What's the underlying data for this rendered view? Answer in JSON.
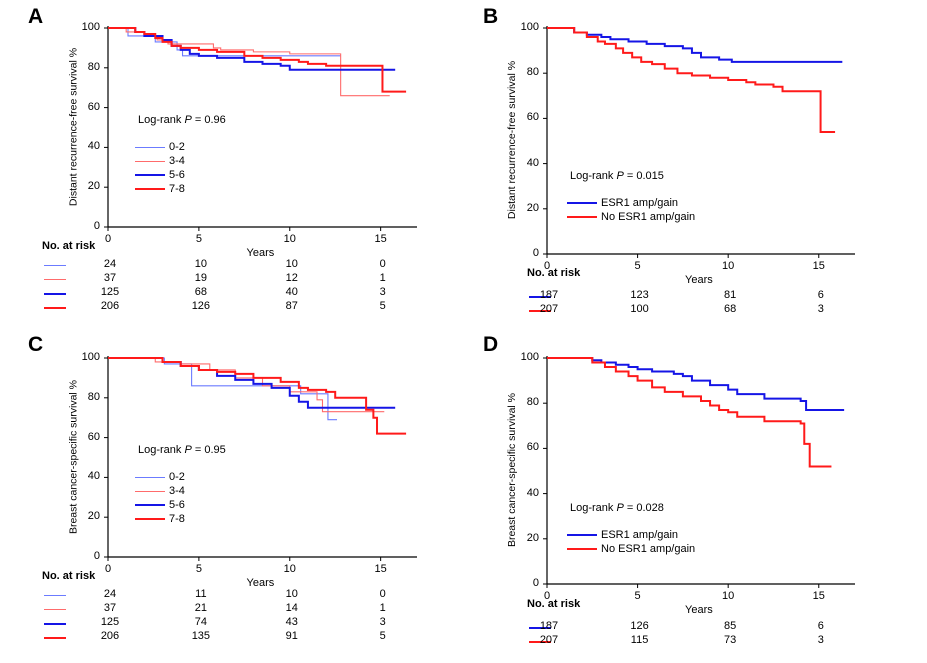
{
  "chart_data": [
    {
      "panel": "A",
      "type": "line",
      "ylabel": "Distant recurrence-free survival %",
      "xlabel": "Years",
      "xlim": [
        0,
        17
      ],
      "ylim": [
        0,
        100
      ],
      "xticks": [
        "0",
        "5",
        "10",
        "15"
      ],
      "yticks": [
        "0",
        "20",
        "40",
        "60",
        "80",
        "100"
      ],
      "logrank_prefix": "Log-rank ",
      "logrank_p": "P",
      "logrank_value": " = 0.96",
      "risk_title": "No. at risk",
      "series": [
        {
          "name": "0-2",
          "color": "#6b7bff",
          "width": 1.1,
          "points": [
            [
              0,
              100
            ],
            [
              1,
              100
            ],
            [
              1.1,
              96
            ],
            [
              2.5,
              96
            ],
            [
              2.6,
              93
            ],
            [
              3,
              93
            ],
            [
              3.8,
              89
            ],
            [
              4.1,
              86
            ],
            [
              8,
              86
            ],
            [
              8.2,
              86
            ],
            [
              12.8,
              86
            ]
          ],
          "risk": [
            "24",
            "10",
            "10",
            "0"
          ]
        },
        {
          "name": "3-4",
          "color": "#ff6b6b",
          "width": 1.1,
          "points": [
            [
              0,
              100
            ],
            [
              0.8,
              100
            ],
            [
              1,
              98
            ],
            [
              2,
              96
            ],
            [
              2.7,
              94
            ],
            [
              3.3,
              92
            ],
            [
              4.5,
              92
            ],
            [
              5.8,
              90
            ],
            [
              6.2,
              89
            ],
            [
              8,
              88
            ],
            [
              10,
              87
            ],
            [
              12.7,
              87
            ],
            [
              12.8,
              66
            ],
            [
              15.5,
              66
            ]
          ],
          "risk": [
            "37",
            "19",
            "12",
            "1"
          ]
        },
        {
          "name": "5-6",
          "color": "#1515e6",
          "width": 2.0,
          "points": [
            [
              0,
              100
            ],
            [
              1,
              100
            ],
            [
              1.5,
              98
            ],
            [
              2,
              96
            ],
            [
              3,
              94
            ],
            [
              3.5,
              91
            ],
            [
              4,
              89
            ],
            [
              4.5,
              87
            ],
            [
              5,
              86
            ],
            [
              6,
              85
            ],
            [
              7.5,
              83
            ],
            [
              8.5,
              82
            ],
            [
              9.5,
              81
            ],
            [
              10,
              79
            ],
            [
              14,
              79
            ],
            [
              14.3,
              79
            ],
            [
              15.8,
              79
            ]
          ],
          "risk": [
            "125",
            "68",
            "40",
            "3"
          ]
        },
        {
          "name": "7-8",
          "color": "#ff1a1a",
          "width": 2.0,
          "points": [
            [
              0,
              100
            ],
            [
              0.8,
              100
            ],
            [
              1.5,
              98
            ],
            [
              2,
              97
            ],
            [
              2.6,
              95
            ],
            [
              3,
              93
            ],
            [
              3.5,
              91
            ],
            [
              4,
              90
            ],
            [
              5,
              89
            ],
            [
              6,
              88
            ],
            [
              7.5,
              86
            ],
            [
              8.5,
              85
            ],
            [
              9.5,
              84
            ],
            [
              10.5,
              83
            ],
            [
              11,
              82
            ],
            [
              12,
              81
            ],
            [
              14,
              81
            ],
            [
              15,
              81
            ],
            [
              15.1,
              68
            ],
            [
              16.4,
              68
            ]
          ],
          "risk": [
            "206",
            "126",
            "87",
            "5"
          ]
        }
      ]
    },
    {
      "panel": "B",
      "type": "line",
      "ylabel": "Distant recurrence-free survival %",
      "xlabel": "Years",
      "xlim": [
        0,
        17
      ],
      "ylim": [
        0,
        100
      ],
      "xticks": [
        "0",
        "5",
        "10",
        "15"
      ],
      "yticks": [
        "0",
        "20",
        "40",
        "60",
        "80",
        "100"
      ],
      "logrank_prefix": "Log-rank ",
      "logrank_p": "P",
      "logrank_value": " = 0.015",
      "risk_title": "No. at risk",
      "series": [
        {
          "name": "ESR1 amp/gain",
          "color": "#1515e6",
          "width": 2.0,
          "points": [
            [
              0,
              100
            ],
            [
              1,
              100
            ],
            [
              1.5,
              98
            ],
            [
              2.2,
              97
            ],
            [
              3,
              96
            ],
            [
              3.5,
              95
            ],
            [
              4.5,
              94
            ],
            [
              5.5,
              93
            ],
            [
              6.5,
              92
            ],
            [
              7.5,
              91
            ],
            [
              8,
              89
            ],
            [
              8.5,
              87
            ],
            [
              9.5,
              86
            ],
            [
              10.2,
              85
            ],
            [
              11,
              85
            ],
            [
              14,
              85
            ],
            [
              16.3,
              85
            ]
          ],
          "risk": [
            "187",
            "123",
            "81",
            "6"
          ]
        },
        {
          "name": "No ESR1 amp/gain",
          "color": "#ff1a1a",
          "width": 2.0,
          "points": [
            [
              0,
              100
            ],
            [
              1,
              100
            ],
            [
              1.5,
              98
            ],
            [
              2.2,
              96
            ],
            [
              2.8,
              94
            ],
            [
              3.2,
              93
            ],
            [
              3.8,
              91
            ],
            [
              4.2,
              89
            ],
            [
              4.7,
              87
            ],
            [
              5.2,
              85
            ],
            [
              5.8,
              84
            ],
            [
              6.5,
              82
            ],
            [
              7.2,
              80
            ],
            [
              8,
              79
            ],
            [
              9,
              78
            ],
            [
              10,
              77
            ],
            [
              11,
              76
            ],
            [
              11.5,
              75
            ],
            [
              12.5,
              74
            ],
            [
              13,
              72
            ],
            [
              14,
              72
            ],
            [
              15,
              72
            ],
            [
              15.1,
              54
            ],
            [
              15.9,
              54
            ]
          ],
          "risk": [
            "207",
            "100",
            "68",
            "3"
          ]
        }
      ]
    },
    {
      "panel": "C",
      "type": "line",
      "ylabel": "Breast cancer-specific survival %",
      "xlabel": "Years",
      "xlim": [
        0,
        17
      ],
      "ylim": [
        0,
        100
      ],
      "xticks": [
        "0",
        "5",
        "10",
        "15"
      ],
      "yticks": [
        "0",
        "20",
        "40",
        "60",
        "80",
        "100"
      ],
      "logrank_prefix": "Log-rank ",
      "logrank_p": "P",
      "logrank_value": " = 0.95",
      "risk_title": "No. at risk",
      "series": [
        {
          "name": "0-2",
          "color": "#6b7bff",
          "width": 1.1,
          "points": [
            [
              0,
              100
            ],
            [
              3,
              100
            ],
            [
              3.1,
              97
            ],
            [
              4.5,
              97
            ],
            [
              4.6,
              86
            ],
            [
              10.5,
              86
            ],
            [
              10.6,
              82
            ],
            [
              11,
              82
            ],
            [
              12,
              82
            ],
            [
              12.1,
              69
            ],
            [
              12.6,
              69
            ]
          ],
          "risk": [
            "24",
            "11",
            "10",
            "0"
          ]
        },
        {
          "name": "3-4",
          "color": "#ff6b6b",
          "width": 1.1,
          "points": [
            [
              0,
              100
            ],
            [
              2.5,
              100
            ],
            [
              2.6,
              98
            ],
            [
              3.5,
              98
            ],
            [
              4,
              97
            ],
            [
              5.5,
              97
            ],
            [
              5.6,
              94
            ],
            [
              7,
              90
            ],
            [
              8.5,
              86
            ],
            [
              10,
              83
            ],
            [
              11.5,
              79
            ],
            [
              11.8,
              73
            ],
            [
              15.2,
              73
            ]
          ],
          "risk": [
            "37",
            "21",
            "14",
            "1"
          ]
        },
        {
          "name": "5-6",
          "color": "#1515e6",
          "width": 2.0,
          "points": [
            [
              0,
              100
            ],
            [
              2.5,
              100
            ],
            [
              3,
              98
            ],
            [
              4,
              96
            ],
            [
              5,
              94
            ],
            [
              6,
              91
            ],
            [
              7,
              89
            ],
            [
              8,
              87
            ],
            [
              9,
              85
            ],
            [
              10,
              81
            ],
            [
              10.5,
              78
            ],
            [
              11,
              75
            ],
            [
              13,
              75
            ],
            [
              14,
              75
            ],
            [
              15.8,
              75
            ]
          ],
          "risk": [
            "125",
            "74",
            "43",
            "3"
          ]
        },
        {
          "name": "7-8",
          "color": "#ff1a1a",
          "width": 2.0,
          "points": [
            [
              0,
              100
            ],
            [
              2.5,
              100
            ],
            [
              3,
              98
            ],
            [
              4,
              96
            ],
            [
              5,
              94
            ],
            [
              6,
              93
            ],
            [
              7,
              92
            ],
            [
              8,
              90
            ],
            [
              9.5,
              88
            ],
            [
              10.5,
              85
            ],
            [
              11,
              84
            ],
            [
              12,
              83
            ],
            [
              12.5,
              80
            ],
            [
              14,
              80
            ],
            [
              14.2,
              74
            ],
            [
              14.6,
              70
            ],
            [
              14.8,
              62
            ],
            [
              16.4,
              62
            ]
          ],
          "risk": [
            "206",
            "135",
            "91",
            "5"
          ]
        }
      ]
    },
    {
      "panel": "D",
      "type": "line",
      "ylabel": "Breast cancer-specific survival %",
      "xlabel": "Years",
      "xlim": [
        0,
        17
      ],
      "ylim": [
        0,
        100
      ],
      "xticks": [
        "0",
        "5",
        "10",
        "15"
      ],
      "yticks": [
        "0",
        "20",
        "40",
        "60",
        "80",
        "100"
      ],
      "logrank_prefix": "Log-rank ",
      "logrank_p": "P",
      "logrank_value": " = 0.028",
      "risk_title": "No. at risk",
      "series": [
        {
          "name": "ESR1 amp/gain",
          "color": "#1515e6",
          "width": 2.0,
          "points": [
            [
              0,
              100
            ],
            [
              2,
              100
            ],
            [
              2.5,
              99
            ],
            [
              3,
              98
            ],
            [
              3.8,
              97
            ],
            [
              4.5,
              96
            ],
            [
              5,
              95
            ],
            [
              5.8,
              94
            ],
            [
              7,
              93
            ],
            [
              7.5,
              92
            ],
            [
              8,
              90
            ],
            [
              9,
              88
            ],
            [
              10,
              86
            ],
            [
              10.5,
              84
            ],
            [
              11.5,
              84
            ],
            [
              12,
              82
            ],
            [
              13.5,
              82
            ],
            [
              14,
              81
            ],
            [
              14.3,
              77
            ],
            [
              16.4,
              77
            ]
          ],
          "risk": [
            "187",
            "126",
            "85",
            "6"
          ]
        },
        {
          "name": "No ESR1 amp/gain",
          "color": "#ff1a1a",
          "width": 2.0,
          "points": [
            [
              0,
              100
            ],
            [
              2,
              100
            ],
            [
              2.5,
              98
            ],
            [
              3.2,
              96
            ],
            [
              3.8,
              94
            ],
            [
              4.5,
              92
            ],
            [
              5,
              90
            ],
            [
              5.8,
              87
            ],
            [
              6.5,
              85
            ],
            [
              7.5,
              83
            ],
            [
              8.5,
              81
            ],
            [
              9,
              79
            ],
            [
              9.5,
              77
            ],
            [
              10,
              76
            ],
            [
              10.5,
              74
            ],
            [
              11.5,
              74
            ],
            [
              12,
              72
            ],
            [
              13.5,
              72
            ],
            [
              14,
              71
            ],
            [
              14.2,
              62
            ],
            [
              14.5,
              52
            ],
            [
              15.7,
              52
            ]
          ],
          "risk": [
            "207",
            "115",
            "73",
            "3"
          ]
        }
      ]
    }
  ]
}
